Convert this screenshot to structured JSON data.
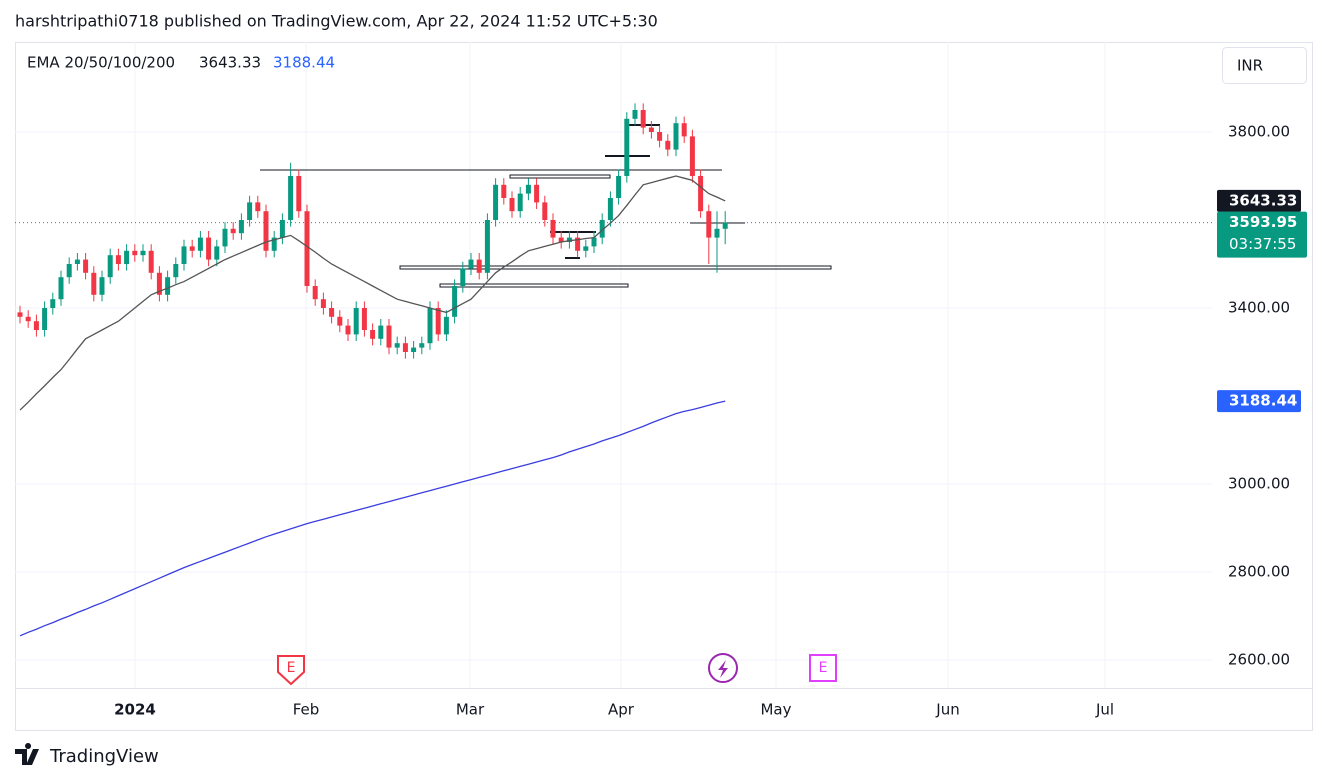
{
  "header": "harshtripathi0718 published on TradingView.com, Apr 22, 2024 11:52 UTC+5:30",
  "currency": "INR",
  "footer": "TradingView",
  "countdown": "03:37:55",
  "events": [
    "E",
    "E"
  ],
  "chart_data": {
    "type": "candlestick",
    "legend_label": "EMA 20/50/100/200",
    "up_color": "#089981",
    "down_color": "#f23645",
    "ylim": [
      2536.4,
      4004.5
    ],
    "yticks": [
      {
        "value": 2600,
        "label": "2600.00"
      },
      {
        "value": 2800,
        "label": "2800.00"
      },
      {
        "value": 3000,
        "label": "3000.00"
      },
      {
        "value": 3400,
        "label": "3400.00"
      },
      {
        "value": 3800,
        "label": "3800.00"
      }
    ],
    "grid": true,
    "time_labels": [
      "2024",
      "Feb",
      "Mar",
      "Apr",
      "May",
      "Jun",
      "Jul"
    ],
    "open": [
      3390,
      3380,
      3370,
      3350,
      3400,
      3420,
      3470,
      3500,
      3510,
      3480,
      3430,
      3470,
      3520,
      3500,
      3530,
      3520,
      3530,
      3480,
      3430,
      3470,
      3500,
      3540,
      3530,
      3560,
      3510,
      3540,
      3580,
      3570,
      3600,
      3640,
      3620,
      3530,
      3560,
      3600,
      3700,
      3620,
      3450,
      3420,
      3400,
      3380,
      3360,
      3340,
      3400,
      3350,
      3330,
      3360,
      3310,
      3320,
      3300,
      3310,
      3320,
      3400,
      3340,
      3380,
      3450,
      3490,
      3510,
      3480,
      3600,
      3680,
      3650,
      3620,
      3660,
      3680,
      3640,
      3600,
      3560,
      3550,
      3560,
      3530,
      3540,
      3560,
      3600,
      3650,
      3700,
      3830,
      3850,
      3810,
      3800,
      3780,
      3760,
      3820,
      3790,
      3700,
      3620,
      3560,
      3580
    ],
    "high": [
      3405,
      3395,
      3385,
      3415,
      3435,
      3485,
      3515,
      3525,
      3525,
      3495,
      3485,
      3535,
      3535,
      3545,
      3545,
      3545,
      3545,
      3495,
      3485,
      3515,
      3555,
      3555,
      3575,
      3575,
      3555,
      3595,
      3595,
      3615,
      3655,
      3655,
      3635,
      3575,
      3615,
      3730,
      3715,
      3635,
      3465,
      3435,
      3415,
      3395,
      3375,
      3415,
      3415,
      3365,
      3375,
      3375,
      3335,
      3335,
      3325,
      3335,
      3415,
      3415,
      3395,
      3465,
      3505,
      3525,
      3525,
      3615,
      3695,
      3695,
      3665,
      3675,
      3695,
      3695,
      3655,
      3615,
      3575,
      3575,
      3575,
      3555,
      3575,
      3615,
      3665,
      3715,
      3845,
      3865,
      3865,
      3825,
      3815,
      3795,
      3835,
      3835,
      3805,
      3715,
      3635,
      3620,
      3620
    ],
    "low": [
      3365,
      3355,
      3335,
      3335,
      3385,
      3405,
      3455,
      3485,
      3465,
      3415,
      3415,
      3455,
      3485,
      3485,
      3505,
      3505,
      3465,
      3415,
      3415,
      3455,
      3485,
      3515,
      3515,
      3495,
      3495,
      3525,
      3555,
      3555,
      3585,
      3605,
      3515,
      3515,
      3545,
      3585,
      3605,
      3435,
      3405,
      3385,
      3365,
      3345,
      3325,
      3325,
      3335,
      3315,
      3315,
      3295,
      3295,
      3285,
      3285,
      3295,
      3305,
      3325,
      3325,
      3365,
      3435,
      3475,
      3465,
      3465,
      3585,
      3635,
      3605,
      3605,
      3645,
      3625,
      3585,
      3545,
      3535,
      3535,
      3515,
      3515,
      3525,
      3545,
      3585,
      3635,
      3685,
      3815,
      3795,
      3785,
      3765,
      3745,
      3745,
      3775,
      3685,
      3605,
      3500,
      3480,
      3545
    ],
    "close": [
      3380,
      3370,
      3350,
      3400,
      3420,
      3470,
      3500,
      3510,
      3480,
      3430,
      3470,
      3520,
      3500,
      3530,
      3520,
      3530,
      3480,
      3430,
      3470,
      3500,
      3540,
      3530,
      3560,
      3510,
      3540,
      3580,
      3570,
      3600,
      3640,
      3620,
      3530,
      3560,
      3600,
      3700,
      3620,
      3450,
      3420,
      3400,
      3380,
      3360,
      3340,
      3400,
      3350,
      3330,
      3360,
      3310,
      3320,
      3300,
      3310,
      3320,
      3400,
      3340,
      3380,
      3450,
      3490,
      3510,
      3480,
      3600,
      3680,
      3650,
      3620,
      3660,
      3680,
      3640,
      3600,
      3560,
      3550,
      3560,
      3530,
      3540,
      3560,
      3600,
      3650,
      3700,
      3830,
      3850,
      3810,
      3800,
      3780,
      3760,
      3820,
      3790,
      3700,
      3620,
      3560,
      3580,
      3593.95
    ],
    "lines": [
      {
        "color": "#555555",
        "values": [
          3168,
          3186,
          3205,
          3223,
          3242,
          3260,
          3283,
          3307,
          3330,
          3340,
          3350,
          3360,
          3370,
          3385,
          3400,
          3415,
          3430,
          3438,
          3445,
          3453,
          3460,
          3470,
          3480,
          3490,
          3500,
          3510,
          3518,
          3526,
          3534,
          3542,
          3550,
          3555,
          3560,
          3565,
          3553,
          3540,
          3527,
          3513,
          3500,
          3490,
          3480,
          3470,
          3460,
          3450,
          3440,
          3430,
          3420,
          3415,
          3410,
          3405,
          3400,
          3395,
          3390,
          3400,
          3410,
          3420,
          3440,
          3460,
          3480,
          3493,
          3505,
          3518,
          3530,
          3535,
          3540,
          3545,
          3550,
          3553,
          3555,
          3558,
          3560,
          3577,
          3593,
          3610,
          3633,
          3657,
          3680,
          3685,
          3690,
          3695,
          3700,
          3695,
          3690,
          3675,
          3660,
          3652,
          3643.33
        ]
      },
      {
        "color": "#3a3ee0",
        "values": [
          2655,
          2663,
          2670,
          2678,
          2685,
          2693,
          2700,
          2708,
          2715,
          2723,
          2730,
          2738,
          2746,
          2754,
          2762,
          2770,
          2778,
          2786,
          2794,
          2802,
          2810,
          2817,
          2824,
          2831,
          2838,
          2845,
          2852,
          2859,
          2866,
          2873,
          2880,
          2886,
          2892,
          2898,
          2904,
          2910,
          2915,
          2920,
          2925,
          2930,
          2935,
          2940,
          2945,
          2950,
          2955,
          2960,
          2965,
          2970,
          2975,
          2980,
          2985,
          2990,
          2995,
          3000,
          3005,
          3010,
          3015,
          3020,
          3025,
          3030,
          3035,
          3040,
          3045,
          3050,
          3055,
          3060,
          3066,
          3073,
          3079,
          3085,
          3091,
          3098,
          3104,
          3110,
          3117,
          3124,
          3131,
          3139,
          3146,
          3153,
          3160,
          3165,
          3169,
          3174,
          3179,
          3184,
          3188.44
        ]
      }
    ]
  }
}
